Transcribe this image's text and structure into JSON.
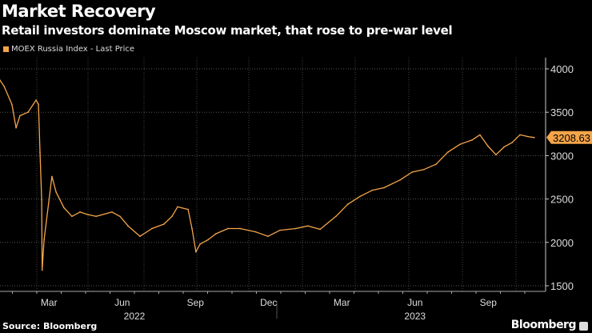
{
  "chart_data": {
    "type": "line",
    "title": "Market Recovery",
    "subtitle": "Retail investors dominate Moscow market, that rose to pre-war level",
    "legend": [
      "MOEX Russia Index - Last Price"
    ],
    "legend_placement": "top-left",
    "x_unit": "months since 2022-01-01",
    "x_tick_labels": [
      {
        "label": "Mar",
        "t": 2.5
      },
      {
        "label": "Jun",
        "t": 5.5
      },
      {
        "label": "Sep",
        "t": 8.5
      },
      {
        "label": "Dec",
        "t": 11.5
      },
      {
        "label": "Mar",
        "t": 14.5
      },
      {
        "label": "Jun",
        "t": 17.5
      },
      {
        "label": "Sep",
        "t": 20.5
      }
    ],
    "year_labels": [
      {
        "label": "2022",
        "t": 6
      },
      {
        "label": "2023",
        "t": 17.5
      }
    ],
    "y_ticks": [
      4000,
      3500,
      3000,
      2500,
      2000,
      1500
    ],
    "ylim": [
      1500,
      4000
    ],
    "grid": true,
    "last_value_label": "3208.63",
    "series": [
      {
        "name": "MOEX Russia Index - Last Price",
        "color": "#f5a54a",
        "t": [
          0.49,
          0.66,
          0.98,
          1.15,
          1.31,
          1.64,
          1.97,
          2.07,
          2.13,
          2.2,
          2.22,
          2.3,
          2.62,
          2.79,
          3.11,
          3.44,
          3.77,
          4.1,
          4.43,
          5.08,
          5.41,
          5.74,
          6.23,
          6.72,
          7.21,
          7.54,
          7.77,
          8.2,
          8.36,
          8.52,
          8.69,
          9.02,
          9.34,
          9.84,
          10.33,
          10.98,
          11.48,
          11.97,
          12.62,
          13.11,
          13.61,
          14.26,
          14.75,
          15.25,
          15.74,
          16.23,
          16.89,
          17.38,
          17.87,
          18.36,
          18.85,
          19.34,
          19.84,
          20.16,
          20.49,
          20.82,
          21.15,
          21.48,
          21.8,
          22.13,
          22.39
        ],
        "values": [
          3870,
          3800,
          3590,
          3320,
          3460,
          3500,
          3640,
          3590,
          3040,
          2490,
          1680,
          2030,
          2760,
          2580,
          2400,
          2300,
          2350,
          2320,
          2300,
          2350,
          2300,
          2190,
          2070,
          2160,
          2210,
          2300,
          2410,
          2380,
          2160,
          1890,
          1980,
          2030,
          2100,
          2160,
          2160,
          2120,
          2070,
          2140,
          2160,
          2190,
          2150,
          2300,
          2440,
          2530,
          2600,
          2630,
          2720,
          2810,
          2840,
          2900,
          3040,
          3130,
          3180,
          3240,
          3110,
          3010,
          3100,
          3150,
          3240,
          3220,
          3208.63
        ]
      }
    ]
  },
  "footer": {
    "source": "Source: Bloomberg",
    "brand": "Bloomberg"
  }
}
